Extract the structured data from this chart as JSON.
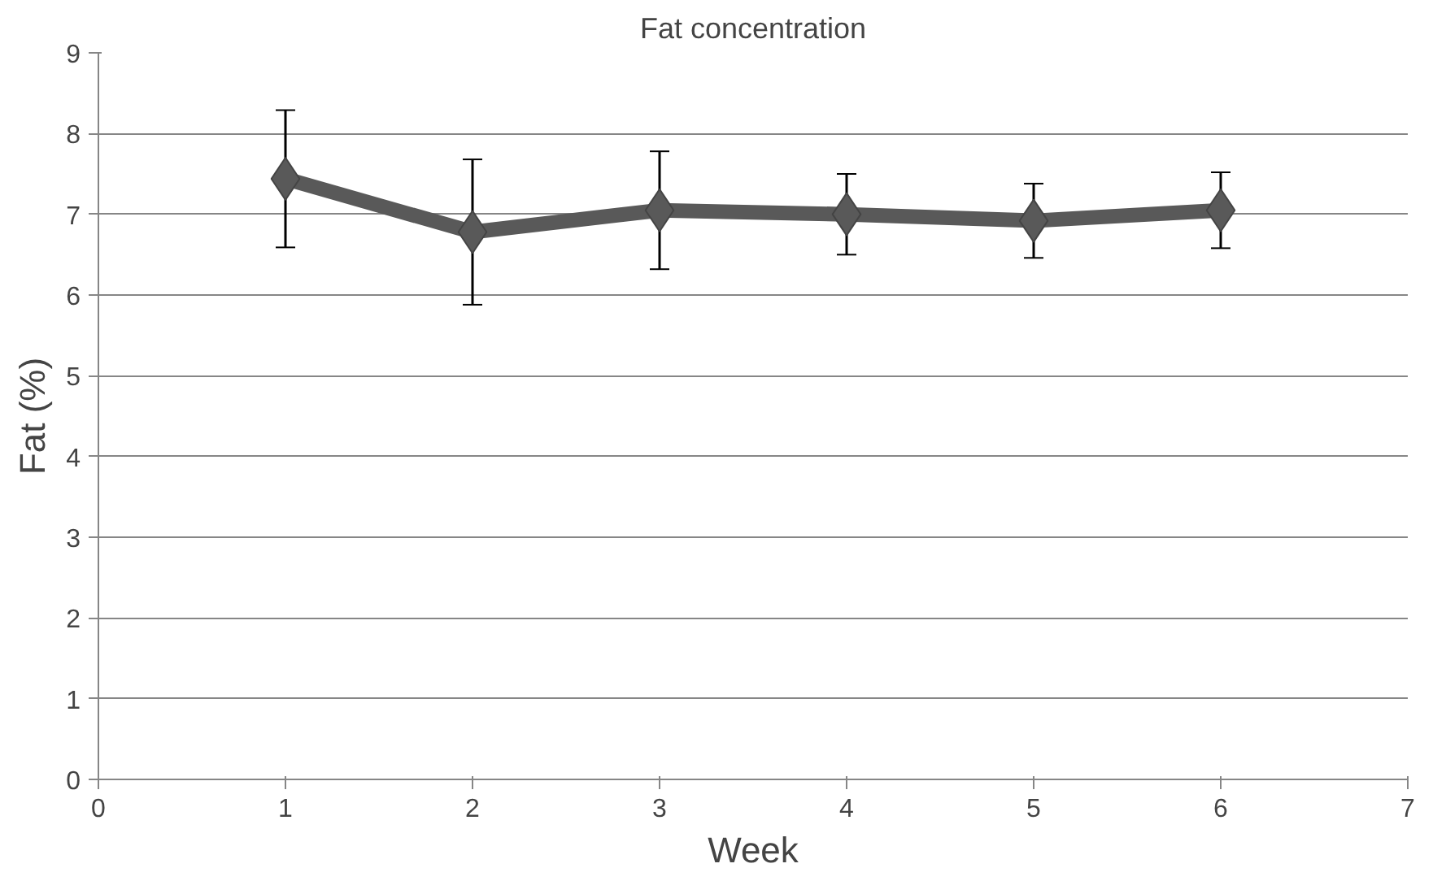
{
  "chart_data": {
    "type": "line",
    "title": "Fat concentration",
    "xlabel": "Week",
    "ylabel": "Fat (%)",
    "x": [
      1,
      2,
      3,
      4,
      5,
      6
    ],
    "series": [
      {
        "color": "#595959",
        "values": [
          7.44,
          6.78,
          7.05,
          7.0,
          6.92,
          7.05
        ],
        "errors": [
          0.85,
          0.9,
          0.73,
          0.5,
          0.46,
          0.47
        ]
      }
    ],
    "xlim": [
      0,
      7
    ],
    "xticks": [
      0,
      1,
      2,
      3,
      4,
      5,
      6,
      7
    ],
    "ylim": [
      0,
      9
    ],
    "yticks": [
      0,
      1,
      2,
      3,
      4,
      5,
      6,
      7,
      8,
      9
    ],
    "grid": "y",
    "marker": "diamond",
    "line_style": "solid"
  }
}
